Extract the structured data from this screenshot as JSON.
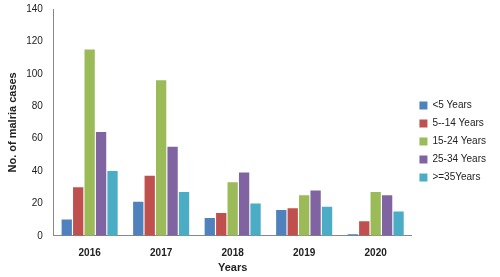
{
  "chart_data": {
    "type": "bar",
    "x_label": "Years",
    "y_label": "No. of malria cases",
    "categories": [
      "2016",
      "2017",
      "2018",
      "2019",
      "2020"
    ],
    "series": [
      {
        "name": "<5 Years",
        "color": "#4f81bd",
        "values": [
          10,
          21,
          11,
          16,
          1
        ]
      },
      {
        "name": "5--14 Years",
        "color": "#c0504d",
        "values": [
          30,
          37,
          14,
          17,
          9
        ]
      },
      {
        "name": "15-24 Years",
        "color": "#9bbb59",
        "values": [
          115,
          96,
          33,
          25,
          27
        ]
      },
      {
        "name": "25-34 Years",
        "color": "#8064a2",
        "values": [
          64,
          55,
          39,
          28,
          25
        ]
      },
      {
        "name": ">=35Years",
        "color": "#4bacc6",
        "values": [
          40,
          27,
          20,
          18,
          15
        ]
      }
    ],
    "ylim": [
      0,
      140
    ],
    "yticks": [
      0,
      20,
      40,
      60,
      80,
      100,
      120,
      140
    ],
    "grid": false,
    "legend": "right"
  }
}
